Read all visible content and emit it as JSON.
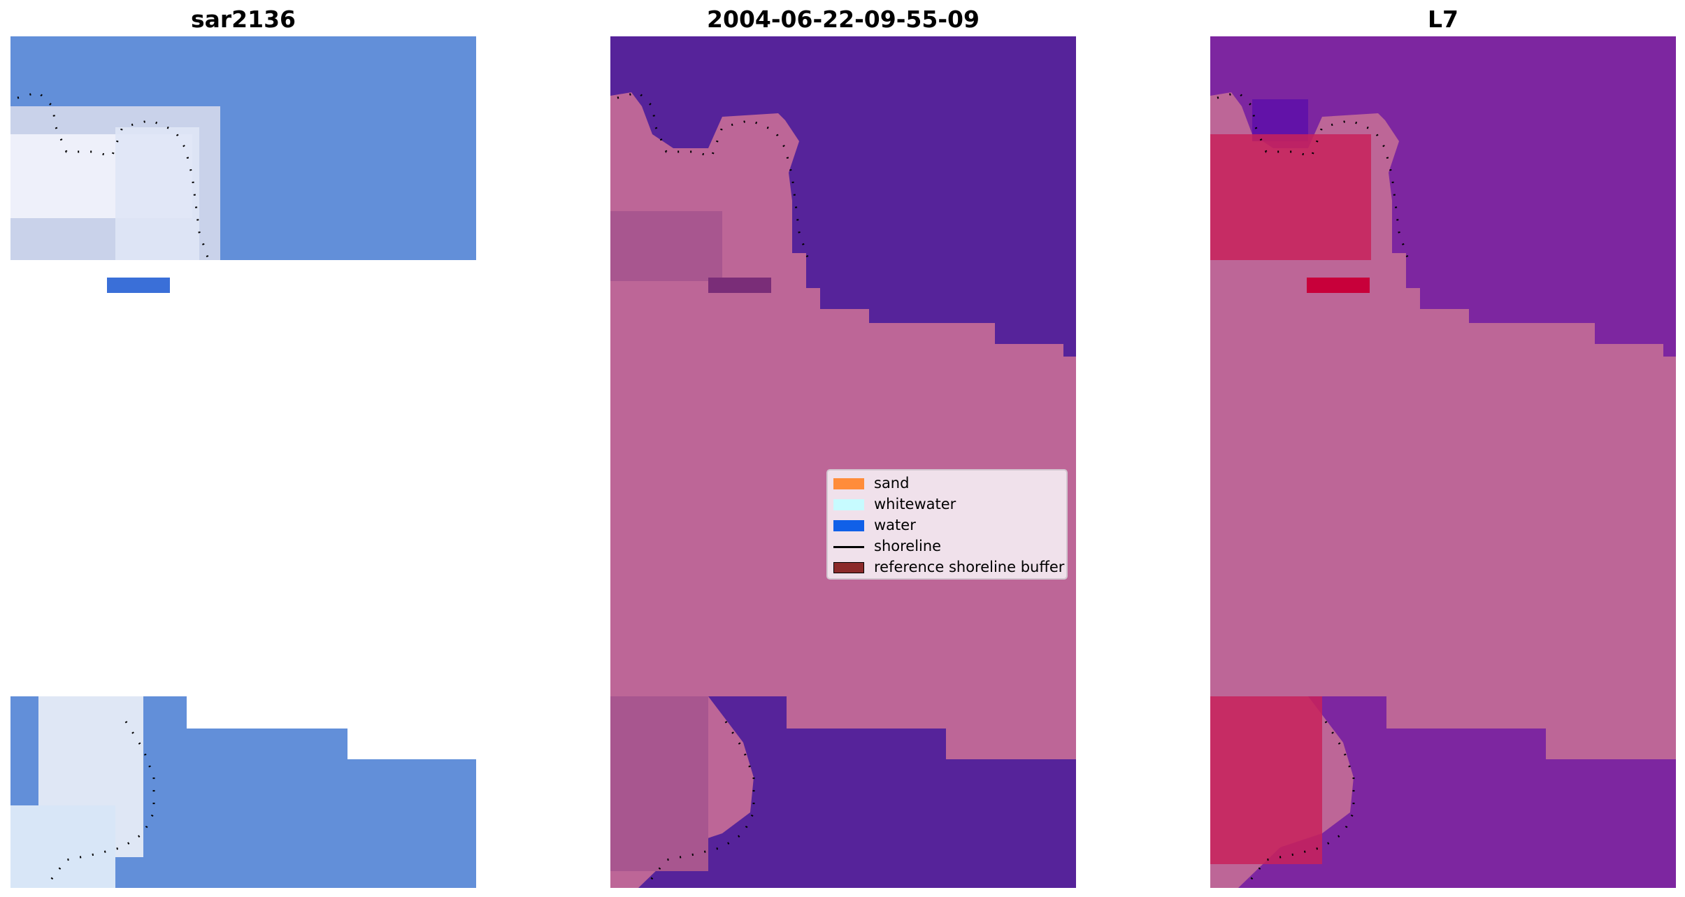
{
  "panels": [
    {
      "title": "sar2136",
      "colors": {
        "base": "#628fd9",
        "land": "#d9dff0",
        "bright": "#f7f8fe",
        "dark": "#4a7fd6"
      }
    },
    {
      "title": "2004-06-22-09-55-09",
      "colors": {
        "base": "#56239a",
        "land": "#bd6697",
        "bright": "#c97ab0",
        "dark": "#7a2d78"
      }
    },
    {
      "title": "L7",
      "colors": {
        "base": "#7d26a0",
        "land": "#bd6697",
        "bright": "#c8225a",
        "dark": "#6212a8"
      }
    }
  ],
  "legend": {
    "items": [
      {
        "label": "sand",
        "color": "#ff8c3a",
        "kind": "patch"
      },
      {
        "label": "whitewater",
        "color": "#c7fbff",
        "kind": "patch"
      },
      {
        "label": "water",
        "color": "#1060e8",
        "kind": "patch"
      },
      {
        "label": "shoreline",
        "color": "#000000",
        "kind": "line"
      },
      {
        "label": "reference shoreline buffer",
        "color": "#8b2a2a",
        "kind": "patch"
      }
    ]
  }
}
